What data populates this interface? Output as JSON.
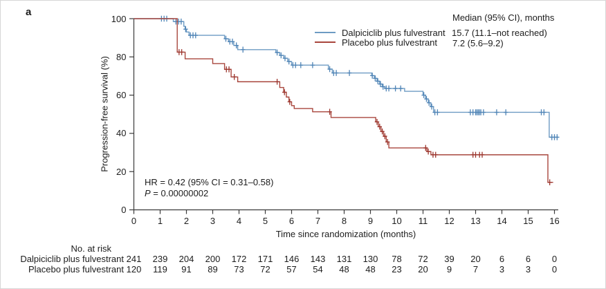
{
  "panel_label": "a",
  "chart_data": {
    "type": "line",
    "subtype": "kaplan-meier-step-curves",
    "title": "",
    "xlabel": "Time since randomization (months)",
    "ylabel": "Progression-free survival (%)",
    "xlim": [
      0,
      16
    ],
    "ylim": [
      0,
      100
    ],
    "xticks": [
      0,
      1,
      2,
      3,
      4,
      5,
      6,
      7,
      8,
      9,
      10,
      11,
      12,
      13,
      14,
      15,
      16
    ],
    "yticks": [
      0,
      20,
      40,
      60,
      80,
      100
    ],
    "grid": false,
    "legend_position": "top-right-inside",
    "legend_header": "Median (95% CI), months",
    "annotations": {
      "hr": "HR = 0.42 (95% CI = 0.31–0.58)",
      "p_label": "P",
      "p_value": " = 0.00000002"
    },
    "colors": {
      "axis": "#3a3a3a",
      "text": "#1c1c1c"
    },
    "series": [
      {
        "name": "Dalpiciclib plus fulvestrant",
        "color": "#6d9bc3",
        "censor_color": "#4f84b6",
        "median_text": "15.7 (11.1–not reached)",
        "end_x": 16.15,
        "steps": [
          [
            0,
            100
          ],
          [
            1.5,
            98.5
          ],
          [
            1.9,
            96
          ],
          [
            1.95,
            94.5
          ],
          [
            2.0,
            93
          ],
          [
            2.1,
            91.3
          ],
          [
            3.45,
            89.5
          ],
          [
            3.6,
            88
          ],
          [
            3.8,
            86
          ],
          [
            3.95,
            83.8
          ],
          [
            5.4,
            82.3
          ],
          [
            5.55,
            80.8
          ],
          [
            5.7,
            79.3
          ],
          [
            5.85,
            77.6
          ],
          [
            6.0,
            75.7
          ],
          [
            7.4,
            73.6
          ],
          [
            7.55,
            71.6
          ],
          [
            9.05,
            70.2
          ],
          [
            9.15,
            68.8
          ],
          [
            9.25,
            67.3
          ],
          [
            9.35,
            65.8
          ],
          [
            9.45,
            64.4
          ],
          [
            9.55,
            63.5
          ],
          [
            10.3,
            62
          ],
          [
            11.0,
            60
          ],
          [
            11.1,
            58
          ],
          [
            11.2,
            56
          ],
          [
            11.3,
            54
          ],
          [
            11.4,
            51
          ],
          [
            15.8,
            38
          ]
        ],
        "censors": [
          [
            1.05,
            100
          ],
          [
            1.15,
            100
          ],
          [
            1.25,
            100
          ],
          [
            1.6,
            98.5
          ],
          [
            1.7,
            98.5
          ],
          [
            1.8,
            98.5
          ],
          [
            1.97,
            94.5
          ],
          [
            2.15,
            91.3
          ],
          [
            2.25,
            91.3
          ],
          [
            2.35,
            91.3
          ],
          [
            3.5,
            89.5
          ],
          [
            3.65,
            88
          ],
          [
            3.75,
            88
          ],
          [
            3.9,
            86
          ],
          [
            4.15,
            83.8
          ],
          [
            5.45,
            82.3
          ],
          [
            5.6,
            80.8
          ],
          [
            5.75,
            79.3
          ],
          [
            5.9,
            77.6
          ],
          [
            6.05,
            75.7
          ],
          [
            6.15,
            75.7
          ],
          [
            6.35,
            75.7
          ],
          [
            6.8,
            75.7
          ],
          [
            7.45,
            73.6
          ],
          [
            7.6,
            71.6
          ],
          [
            7.7,
            71.6
          ],
          [
            8.2,
            71.6
          ],
          [
            9.07,
            70.2
          ],
          [
            9.18,
            68.8
          ],
          [
            9.28,
            67.3
          ],
          [
            9.38,
            65.8
          ],
          [
            9.48,
            64.4
          ],
          [
            9.6,
            63.5
          ],
          [
            9.7,
            63.5
          ],
          [
            9.95,
            63.5
          ],
          [
            10.15,
            63.5
          ],
          [
            11.03,
            60
          ],
          [
            11.13,
            58
          ],
          [
            11.23,
            56
          ],
          [
            11.33,
            54
          ],
          [
            11.45,
            51
          ],
          [
            11.55,
            51
          ],
          [
            12.8,
            51
          ],
          [
            12.9,
            51
          ],
          [
            13.0,
            51
          ],
          [
            13.05,
            51
          ],
          [
            13.1,
            51
          ],
          [
            13.15,
            51
          ],
          [
            13.2,
            51
          ],
          [
            13.3,
            51
          ],
          [
            13.8,
            51
          ],
          [
            14.15,
            51
          ],
          [
            15.5,
            51
          ],
          [
            15.6,
            51
          ],
          [
            15.9,
            38
          ],
          [
            16.0,
            38
          ],
          [
            16.1,
            38
          ]
        ]
      },
      {
        "name": "Placebo plus fulvestrant",
        "color": "#a8453c",
        "censor_color": "#9c352d",
        "median_text": "7.2 (5.6–9.2)",
        "end_x": 15.95,
        "steps": [
          [
            0,
            100
          ],
          [
            1.65,
            82.5
          ],
          [
            1.95,
            79
          ],
          [
            3.0,
            76.5
          ],
          [
            3.45,
            73.5
          ],
          [
            3.7,
            69.5
          ],
          [
            3.95,
            67
          ],
          [
            5.55,
            64
          ],
          [
            5.7,
            61.5
          ],
          [
            5.8,
            59
          ],
          [
            5.9,
            56.5
          ],
          [
            6.0,
            54.5
          ],
          [
            6.1,
            53
          ],
          [
            6.8,
            51.3
          ],
          [
            7.5,
            48.3
          ],
          [
            9.2,
            46
          ],
          [
            9.3,
            43.5
          ],
          [
            9.4,
            41
          ],
          [
            9.5,
            38.5
          ],
          [
            9.6,
            35.5
          ],
          [
            9.7,
            32.4
          ],
          [
            11.15,
            30.5
          ],
          [
            11.3,
            28.8
          ],
          [
            15.75,
            14.4
          ]
        ],
        "censors": [
          [
            1.72,
            82.5
          ],
          [
            1.82,
            82.5
          ],
          [
            3.52,
            73.5
          ],
          [
            3.62,
            73.5
          ],
          [
            3.82,
            69.5
          ],
          [
            5.45,
            67
          ],
          [
            5.73,
            61.5
          ],
          [
            5.93,
            56.5
          ],
          [
            7.45,
            51.3
          ],
          [
            9.25,
            46
          ],
          [
            9.35,
            43.5
          ],
          [
            9.45,
            41
          ],
          [
            9.55,
            38.5
          ],
          [
            9.65,
            35.5
          ],
          [
            11.1,
            32.4
          ],
          [
            11.2,
            30.5
          ],
          [
            11.38,
            28.8
          ],
          [
            11.48,
            28.8
          ],
          [
            12.9,
            28.8
          ],
          [
            13.0,
            28.8
          ],
          [
            13.15,
            28.8
          ],
          [
            13.25,
            28.8
          ],
          [
            15.82,
            14.4
          ]
        ]
      }
    ]
  },
  "risk_table": {
    "title": "No. at risk",
    "timepoints": [
      0,
      1,
      2,
      3,
      4,
      5,
      6,
      7,
      8,
      9,
      10,
      11,
      12,
      13,
      14,
      15,
      16
    ],
    "rows": [
      {
        "label": "Dalpiciclib plus fulvestrant",
        "values": [
          241,
          239,
          204,
          200,
          172,
          171,
          146,
          143,
          131,
          130,
          78,
          72,
          39,
          20,
          6,
          6,
          0
        ]
      },
      {
        "label": "Placebo plus fulvestrant",
        "values": [
          120,
          119,
          91,
          89,
          73,
          72,
          57,
          54,
          48,
          48,
          23,
          20,
          9,
          7,
          3,
          3,
          0
        ]
      }
    ]
  }
}
